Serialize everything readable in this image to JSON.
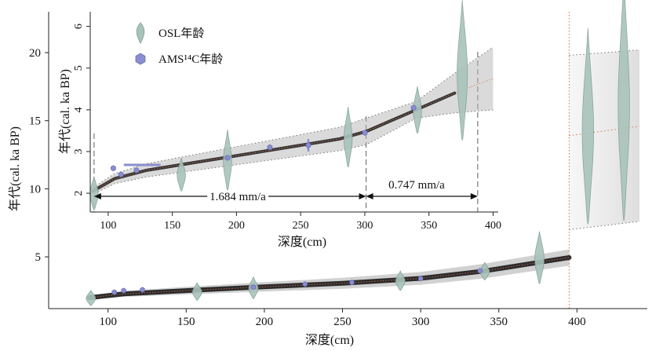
{
  "chart_data": [
    {
      "type": "scatter",
      "panel": "main",
      "xlabel": "深度(cm)",
      "ylabel": "年代(cal. ka BP)",
      "xlim": [
        62,
        445
      ],
      "ylim": [
        1.2,
        23.0
      ],
      "xticks": [
        100,
        150,
        200,
        250,
        300,
        350,
        400
      ],
      "yticks": [
        5,
        10,
        15,
        20
      ],
      "vline_x": 395,
      "osl": [
        {
          "x": 89,
          "y": 1.98,
          "sd": 0.35
        },
        {
          "x": 157,
          "y": 2.45,
          "sd": 0.4
        },
        {
          "x": 193,
          "y": 2.72,
          "sd": 0.5
        },
        {
          "x": 287,
          "y": 3.25,
          "sd": 0.45
        },
        {
          "x": 341,
          "y": 3.95,
          "sd": 0.4
        },
        {
          "x": 376,
          "y": 4.95,
          "sd": 1.2
        },
        {
          "x": 407,
          "y": 14.6,
          "sd": 4.5
        },
        {
          "x": 430,
          "y": 16.6,
          "sd": 5.6
        }
      ],
      "ams": [
        {
          "x": 104,
          "y": 2.4
        },
        {
          "x": 110,
          "y": 2.52
        },
        {
          "x": 122,
          "y": 2.58
        },
        {
          "x": 193,
          "y": 2.78
        },
        {
          "x": 226,
          "y": 3.0
        },
        {
          "x": 256,
          "y": 3.12
        },
        {
          "x": 300,
          "y": 3.4
        },
        {
          "x": 338,
          "y": 3.98
        }
      ],
      "model": [
        [
          88,
          2.0
        ],
        [
          110,
          2.28
        ],
        [
          150,
          2.52
        ],
        [
          200,
          2.8
        ],
        [
          250,
          3.06
        ],
        [
          300,
          3.42
        ],
        [
          340,
          3.95
        ],
        [
          395,
          4.95
        ]
      ],
      "range_left": {
        "x1": 395,
        "x2": 440,
        "lo": [
          7.0,
          7.6
        ],
        "hi": [
          19.8,
          20.2
        ],
        "mid": [
          13.9,
          14.6
        ]
      }
    },
    {
      "type": "scatter",
      "panel": "inset",
      "xlabel": "深度(cm)",
      "ylabel": "年代(cal. ka BP)",
      "xlim": [
        86,
        404
      ],
      "ylim": [
        1.55,
        6.35
      ],
      "xticks": [
        100,
        150,
        200,
        250,
        300,
        350,
        400
      ],
      "yticks": [
        2,
        3,
        4,
        5,
        6
      ],
      "legend": {
        "position": "top-left",
        "entries": [
          "OSL年龄",
          "AMS¹⁴C年龄"
        ]
      },
      "annotations": [
        {
          "text": "1.684 mm/a",
          "x1": 89,
          "x2": 301
        },
        {
          "text": "0.747 mm/a",
          "x1": 301,
          "x2": 388
        }
      ],
      "dashed_lines_x": [
        89,
        301,
        388
      ],
      "osl": [
        {
          "x": 89,
          "y": 2.0,
          "sd": 0.25
        },
        {
          "x": 157,
          "y": 2.45,
          "sd": 0.25
        },
        {
          "x": 193,
          "y": 2.8,
          "sd": 0.45
        },
        {
          "x": 287,
          "y": 3.35,
          "sd": 0.45
        },
        {
          "x": 341,
          "y": 4.0,
          "sd": 0.35
        },
        {
          "x": 376,
          "y": 4.95,
          "sd": 1.05
        }
      ],
      "ams": [
        {
          "x": 104,
          "y": 2.6
        },
        {
          "x": 110,
          "y": 2.45
        },
        {
          "x": 122,
          "y": 2.55
        },
        {
          "x": 193,
          "y": 2.85
        },
        {
          "x": 226,
          "y": 3.1
        },
        {
          "x": 256,
          "y": 3.15
        },
        {
          "x": 300,
          "y": 3.45
        },
        {
          "x": 338,
          "y": 4.05
        }
      ],
      "model": [
        [
          88,
          2.05
        ],
        [
          105,
          2.35
        ],
        [
          130,
          2.55
        ],
        [
          180,
          2.8
        ],
        [
          230,
          3.05
        ],
        [
          280,
          3.3
        ],
        [
          301,
          3.48
        ],
        [
          340,
          4.0
        ],
        [
          370,
          4.4
        ],
        [
          400,
          4.75
        ]
      ],
      "colors": {
        "osl": "#a9c3bb",
        "osl_edge": "#7f9f97",
        "ams": "#8a8ed0",
        "ams_edge": "#6a6eb8",
        "model": "#1a1a1a",
        "median": "#e07050"
      }
    }
  ]
}
